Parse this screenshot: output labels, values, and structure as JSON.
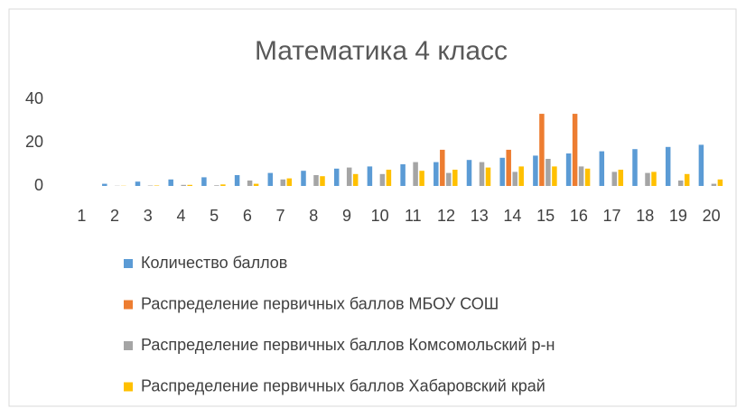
{
  "chart_data": {
    "type": "bar",
    "title": "Математика 4 класс",
    "categories": [
      "1",
      "2",
      "3",
      "4",
      "5",
      "6",
      "7",
      "8",
      "9",
      "10",
      "11",
      "12",
      "13",
      "14",
      "15",
      "16",
      "17",
      "18",
      "19",
      "20"
    ],
    "series": [
      {
        "name": "Количество баллов",
        "color": "#5b9bd5",
        "values": [
          0,
          1,
          2,
          3,
          4,
          5,
          6,
          7,
          8,
          9,
          10,
          11,
          12,
          13,
          14,
          15,
          16,
          17,
          18,
          19
        ]
      },
      {
        "name": "Распределение первичных баллов МБОУ СОШ",
        "color": "#ed7d31",
        "values": [
          0,
          0,
          0,
          0,
          0,
          0,
          0,
          0,
          0,
          0,
          0,
          16.7,
          0,
          16.7,
          33.3,
          33.3,
          0,
          0,
          0,
          0
        ]
      },
      {
        "name": "Распределение первичных баллов Комсомольский р-н",
        "color": "#a5a5a5",
        "values": [
          0,
          0.1,
          0.2,
          0.5,
          0.3,
          2.5,
          3,
          5,
          8.5,
          5.5,
          11,
          6,
          11,
          6.5,
          12.5,
          9,
          6.5,
          6,
          2.5,
          1
        ]
      },
      {
        "name": "Распределение первичных баллов Хабаровский край",
        "color": "#ffc000",
        "values": [
          0,
          0.1,
          0.2,
          0.5,
          0.7,
          1,
          3.5,
          4.5,
          5.5,
          7.5,
          7,
          7.5,
          8.5,
          9,
          9,
          8,
          7.5,
          6.5,
          5.5,
          3
        ]
      }
    ],
    "ylim": [
      0,
      40
    ],
    "yticks": [
      0,
      20,
      40
    ],
    "grid": false,
    "legend": "bottom"
  }
}
